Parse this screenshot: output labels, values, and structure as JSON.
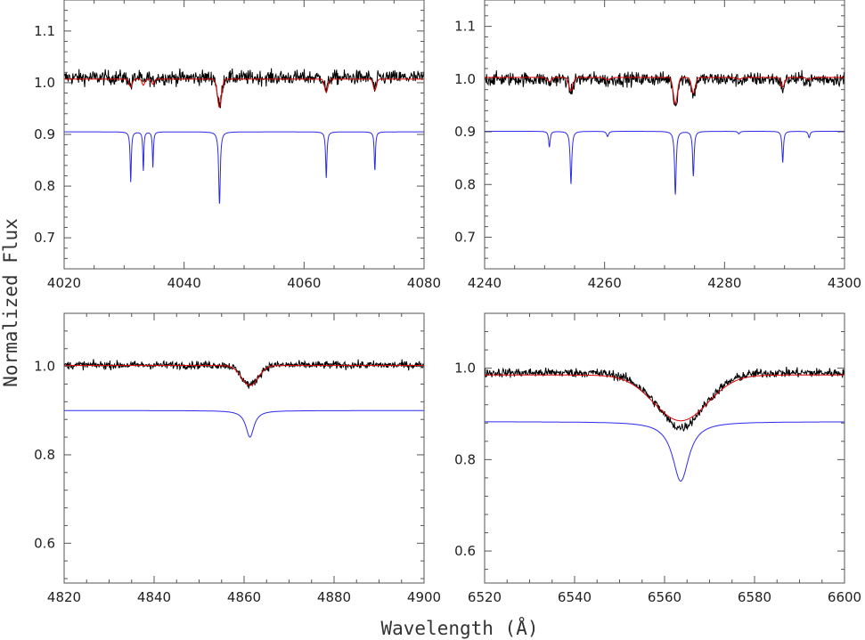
{
  "figure": {
    "xlabel": "Wavelength (Å)",
    "ylabel": "Normalized Flux"
  },
  "colors": {
    "observed": "#000000",
    "model_broadened": "#e00000",
    "model_sharp": "#2a2af0"
  },
  "chart_data": [
    {
      "type": "line",
      "panel": "top-left",
      "xlim": [
        4020,
        4080
      ],
      "ylim": [
        0.64,
        1.16
      ],
      "xticks": [
        4020,
        4040,
        4060,
        4080
      ],
      "xticklabels": [
        "4020",
        "4040",
        "4060",
        "4080"
      ],
      "yticks": [
        0.7,
        0.8,
        0.9,
        1.0,
        1.1
      ],
      "yticklabels": [
        "0.7",
        "0.8",
        "0.9",
        "1.0",
        "1.1"
      ],
      "continuum": {
        "observed": 1.01,
        "model": 1.007,
        "offset_model": 0.905
      },
      "lines": [
        {
          "x": 4031.1,
          "depth": 0.097,
          "width": 0.12,
          "model_depth": 0.015
        },
        {
          "x": 4033.2,
          "depth": 0.075,
          "width": 0.1,
          "model_depth": 0.012
        },
        {
          "x": 4034.8,
          "depth": 0.07,
          "width": 0.1,
          "model_depth": 0.01
        },
        {
          "x": 4045.9,
          "depth": 0.14,
          "width": 0.16,
          "model_depth": 0.055
        },
        {
          "x": 4063.7,
          "depth": 0.09,
          "width": 0.13,
          "model_depth": 0.025
        },
        {
          "x": 4071.8,
          "depth": 0.075,
          "width": 0.12,
          "model_depth": 0.022
        }
      ],
      "series": [
        {
          "kind": "observed",
          "noise": 0.014
        },
        {
          "kind": "model_broadened"
        },
        {
          "kind": "model_sharp"
        }
      ]
    },
    {
      "type": "line",
      "panel": "top-right",
      "xlim": [
        4240,
        4300
      ],
      "ylim": [
        0.64,
        1.15
      ],
      "xticks": [
        4240,
        4260,
        4280,
        4300
      ],
      "xticklabels": [
        "4240",
        "4260",
        "4280",
        "4300"
      ],
      "yticks": [
        0.7,
        0.8,
        0.9,
        1.0,
        1.1
      ],
      "yticklabels": [
        "0.7",
        "0.8",
        "0.9",
        "1.0",
        "1.1"
      ],
      "continuum": {
        "observed": 1.0,
        "model": 1.003,
        "offset_model": 0.901
      },
      "lines": [
        {
          "x": 4250.8,
          "depth": 0.03,
          "width": 0.15,
          "model_depth": 0.008
        },
        {
          "x": 4254.4,
          "depth": 0.1,
          "width": 0.16,
          "model_depth": 0.025
        },
        {
          "x": 4260.5,
          "depth": 0.01,
          "width": 0.2,
          "model_depth": 0.004
        },
        {
          "x": 4271.8,
          "depth": 0.12,
          "width": 0.16,
          "model_depth": 0.05
        },
        {
          "x": 4274.8,
          "depth": 0.085,
          "width": 0.15,
          "model_depth": 0.03
        },
        {
          "x": 4282.4,
          "depth": 0.005,
          "width": 0.2,
          "model_depth": 0.003
        },
        {
          "x": 4289.7,
          "depth": 0.06,
          "width": 0.14,
          "model_depth": 0.018
        },
        {
          "x": 4294.1,
          "depth": 0.012,
          "width": 0.18,
          "model_depth": 0.004
        }
      ],
      "series": [
        {
          "kind": "observed",
          "noise": 0.013
        },
        {
          "kind": "model_broadened"
        },
        {
          "kind": "model_sharp"
        }
      ]
    },
    {
      "type": "line",
      "panel": "bottom-left",
      "xlim": [
        4820,
        4900
      ],
      "ylim": [
        0.51,
        1.12
      ],
      "xticks": [
        4820,
        4840,
        4860,
        4880,
        4900
      ],
      "xticklabels": [
        "4820",
        "4840",
        "4860",
        "4880",
        "4900"
      ],
      "yticks": [
        0.6,
        0.8,
        1.0
      ],
      "yticklabels": [
        "0.6",
        "0.8",
        "1.0"
      ],
      "continuum": {
        "observed": 1.003,
        "model": 1.002,
        "offset_model": 0.9
      },
      "balmer": {
        "x": 4861.3,
        "model_depth": 0.045,
        "model_width": 2.6,
        "sharp_depth": 0.06,
        "sharp_width": 1.1
      },
      "series": [
        {
          "kind": "observed",
          "noise": 0.009
        },
        {
          "kind": "model_broadened"
        },
        {
          "kind": "model_sharp"
        }
      ]
    },
    {
      "type": "line",
      "panel": "bottom-right",
      "xlim": [
        6520,
        6600
      ],
      "ylim": [
        0.53,
        1.12
      ],
      "xticks": [
        6520,
        6540,
        6560,
        6580,
        6600
      ],
      "xticklabels": [
        "6520",
        "6540",
        "6560",
        "6580",
        "6600"
      ],
      "yticks": [
        0.6,
        0.8,
        1.0
      ],
      "yticklabels": [
        "0.6",
        "0.8",
        "1.0"
      ],
      "continuum": {
        "observed": 0.99,
        "model": 0.985,
        "offset_model": 0.883
      },
      "balmer": {
        "x": 6563.6,
        "model_depth": 0.1,
        "model_width": 8.5,
        "sharp_depth": 0.13,
        "sharp_width": 2.2
      },
      "series": [
        {
          "kind": "observed",
          "noise": 0.01
        },
        {
          "kind": "model_broadened"
        },
        {
          "kind": "model_sharp"
        }
      ]
    }
  ]
}
